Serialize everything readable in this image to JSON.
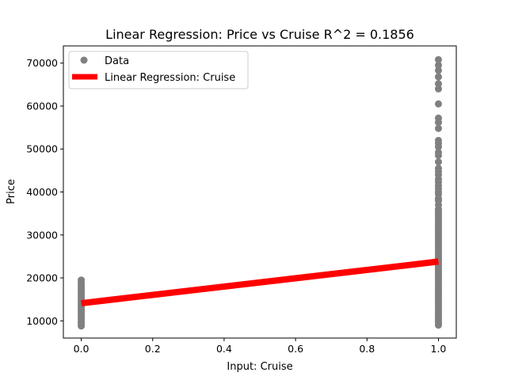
{
  "chart_data": {
    "type": "scatter",
    "title": "Linear Regression: Price vs Cruise  R^2 = 0.1856",
    "xlabel": "Input: Cruise",
    "ylabel": "Price",
    "xlim": [
      -0.05,
      1.05
    ],
    "ylim": [
      6000,
      74000
    ],
    "xticks": [
      0.0,
      0.2,
      0.4,
      0.6,
      0.8,
      1.0
    ],
    "xtick_labels": [
      "0.0",
      "0.2",
      "0.4",
      "0.6",
      "0.8",
      "1.0"
    ],
    "yticks": [
      10000,
      20000,
      30000,
      40000,
      50000,
      60000,
      70000
    ],
    "ytick_labels": [
      "10000",
      "20000",
      "30000",
      "40000",
      "50000",
      "60000",
      "70000"
    ],
    "grid": false,
    "legend_position": "top-left",
    "series": [
      {
        "name": "Data",
        "kind": "scatter",
        "color": "#808080",
        "points": [
          [
            0,
            8800
          ],
          [
            0,
            9300
          ],
          [
            0,
            9800
          ],
          [
            0,
            10300
          ],
          [
            0,
            10800
          ],
          [
            0,
            11300
          ],
          [
            0,
            11800
          ],
          [
            0,
            12300
          ],
          [
            0,
            12800
          ],
          [
            0,
            13300
          ],
          [
            0,
            13800
          ],
          [
            0,
            14300
          ],
          [
            0,
            14800
          ],
          [
            0,
            15300
          ],
          [
            0,
            15800
          ],
          [
            0,
            16300
          ],
          [
            0,
            16800
          ],
          [
            0,
            17300
          ],
          [
            0,
            17800
          ],
          [
            0,
            18300
          ],
          [
            0,
            18800
          ],
          [
            0,
            19500
          ],
          [
            1,
            9000
          ],
          [
            1,
            9500
          ],
          [
            1,
            10000
          ],
          [
            1,
            10500
          ],
          [
            1,
            11000
          ],
          [
            1,
            11500
          ],
          [
            1,
            12000
          ],
          [
            1,
            12500
          ],
          [
            1,
            13000
          ],
          [
            1,
            13500
          ],
          [
            1,
            14000
          ],
          [
            1,
            14500
          ],
          [
            1,
            15000
          ],
          [
            1,
            15500
          ],
          [
            1,
            16000
          ],
          [
            1,
            16500
          ],
          [
            1,
            17000
          ],
          [
            1,
            17500
          ],
          [
            1,
            18000
          ],
          [
            1,
            18500
          ],
          [
            1,
            19000
          ],
          [
            1,
            19500
          ],
          [
            1,
            20000
          ],
          [
            1,
            20500
          ],
          [
            1,
            21000
          ],
          [
            1,
            21500
          ],
          [
            1,
            22000
          ],
          [
            1,
            22500
          ],
          [
            1,
            23000
          ],
          [
            1,
            23500
          ],
          [
            1,
            24000
          ],
          [
            1,
            24500
          ],
          [
            1,
            25000
          ],
          [
            1,
            25500
          ],
          [
            1,
            26000
          ],
          [
            1,
            26500
          ],
          [
            1,
            27000
          ],
          [
            1,
            27500
          ],
          [
            1,
            28000
          ],
          [
            1,
            28500
          ],
          [
            1,
            29000
          ],
          [
            1,
            29500
          ],
          [
            1,
            30000
          ],
          [
            1,
            30500
          ],
          [
            1,
            31000
          ],
          [
            1,
            31500
          ],
          [
            1,
            32000
          ],
          [
            1,
            32500
          ],
          [
            1,
            33000
          ],
          [
            1,
            33500
          ],
          [
            1,
            34000
          ],
          [
            1,
            34500
          ],
          [
            1,
            35000
          ],
          [
            1,
            35500
          ],
          [
            1,
            36000
          ],
          [
            1,
            37000
          ],
          [
            1,
            38000
          ],
          [
            1,
            38500
          ],
          [
            1,
            39500
          ],
          [
            1,
            40000
          ],
          [
            1,
            40800
          ],
          [
            1,
            41500
          ],
          [
            1,
            42300
          ],
          [
            1,
            43000
          ],
          [
            1,
            44000
          ],
          [
            1,
            44800
          ],
          [
            1,
            45500
          ],
          [
            1,
            47000
          ],
          [
            1,
            48500
          ],
          [
            1,
            49200
          ],
          [
            1,
            50500
          ],
          [
            1,
            51300
          ],
          [
            1,
            52000
          ],
          [
            1,
            54800
          ],
          [
            1,
            56200
          ],
          [
            1,
            57200
          ],
          [
            1,
            60500
          ],
          [
            1,
            64000
          ],
          [
            1,
            65200
          ],
          [
            1,
            66800
          ],
          [
            1,
            68300
          ],
          [
            1,
            69500
          ],
          [
            1,
            70800
          ]
        ]
      },
      {
        "name": "Linear Regression: Cruise",
        "kind": "line",
        "color": "#ff0000",
        "x": [
          0,
          1
        ],
        "y": [
          14100,
          23800
        ]
      }
    ]
  }
}
